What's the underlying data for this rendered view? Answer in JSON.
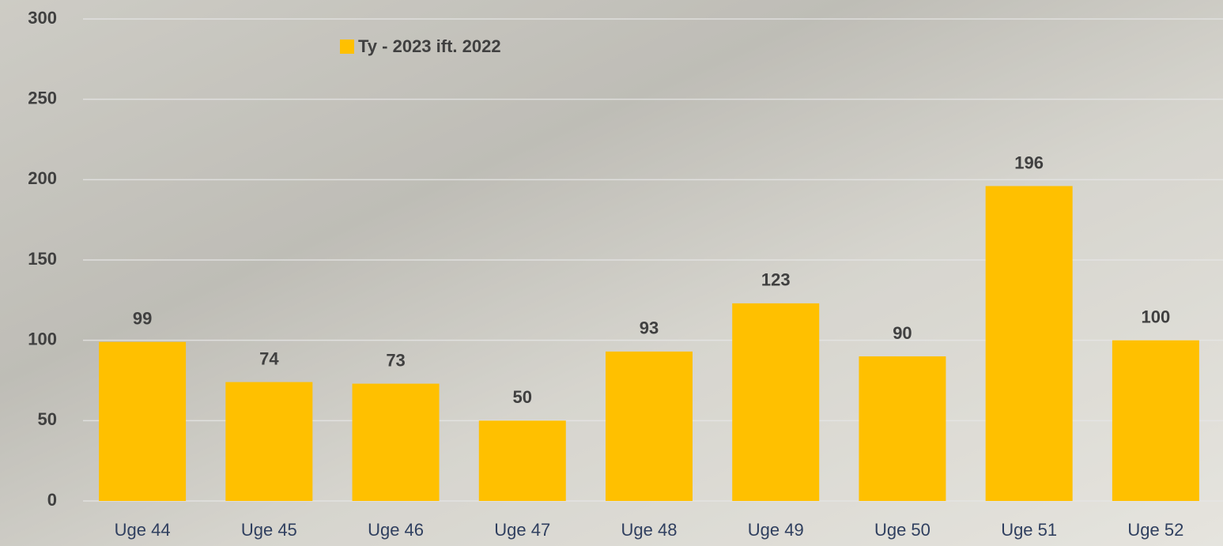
{
  "chart_data": {
    "type": "bar",
    "categories": [
      "Uge 44",
      "Uge 45",
      "Uge 46",
      "Uge 47",
      "Uge 48",
      "Uge 49",
      "Uge 50",
      "Uge 51",
      "Uge 52"
    ],
    "series": [
      {
        "name": "Ty - 2023 ift. 2022",
        "color": "#FFC000",
        "values": [
          99,
          74,
          73,
          50,
          93,
          123,
          90,
          196,
          100
        ]
      }
    ],
    "ylim": [
      0,
      300
    ],
    "yticks": [
      0,
      50,
      100,
      150,
      200,
      250,
      300
    ],
    "grid": true,
    "legend": "top-left",
    "data_labels": true
  }
}
